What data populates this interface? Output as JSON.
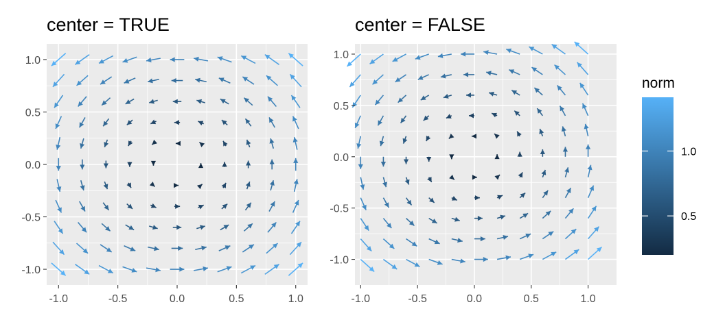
{
  "chart_data": [
    {
      "type": "vector-field",
      "title": "center = TRUE",
      "center": true,
      "field": "u = -y, v = x, arrows centered on grid points",
      "x": [
        -1.0,
        -0.8,
        -0.6,
        -0.4,
        -0.2,
        0.0,
        0.2,
        0.4,
        0.6,
        0.8,
        1.0
      ],
      "y": [
        -1.0,
        -0.8,
        -0.6,
        -0.4,
        -0.2,
        0.0,
        0.2,
        0.4,
        0.6,
        0.8,
        1.0
      ],
      "xlim": [
        -1.1,
        1.1
      ],
      "ylim": [
        -1.15,
        1.15
      ],
      "x_ticks": [
        "-1.0",
        "-0.5",
        "0.0",
        "0.5",
        "1.0"
      ],
      "y_ticks": [
        "1.0",
        "0.5",
        "0.0",
        "-0.5",
        "-1.0"
      ],
      "x_tick_values": [
        -1.0,
        -0.5,
        0.0,
        0.5,
        1.0
      ],
      "y_tick_values": [
        1.0,
        0.5,
        0.0,
        -0.5,
        -1.0
      ],
      "panel_background": "#ebebeb",
      "grid": true
    },
    {
      "type": "vector-field",
      "title": "center = FALSE",
      "center": false,
      "field": "u = -y, v = x, arrows starting at grid points",
      "x": [
        -1.0,
        -0.8,
        -0.6,
        -0.4,
        -0.2,
        0.0,
        0.2,
        0.4,
        0.6,
        0.8,
        1.0
      ],
      "y": [
        -1.0,
        -0.8,
        -0.6,
        -0.4,
        -0.2,
        0.0,
        0.2,
        0.4,
        0.6,
        0.8,
        1.0
      ],
      "xlim": [
        -1.05,
        1.25
      ],
      "ylim": [
        -1.25,
        1.1
      ],
      "x_ticks": [
        "-1.0",
        "-0.5",
        "0.0",
        "0.5",
        "1.0"
      ],
      "y_ticks": [
        "1.0",
        "0.5",
        "0.0",
        "-0.5",
        "-1.0"
      ],
      "x_tick_values": [
        -1.0,
        -0.5,
        0.0,
        0.5,
        1.0
      ],
      "y_tick_values": [
        1.0,
        0.5,
        0.0,
        -0.5,
        -1.0
      ],
      "panel_background": "#ebebeb",
      "grid": true
    }
  ],
  "legend": {
    "title": "norm",
    "placement": "right",
    "range": [
      0.2,
      1.414
    ],
    "breaks": [
      "1.0",
      "0.5"
    ],
    "break_values": [
      1.0,
      0.5
    ],
    "color_low": "#132b43",
    "color_high": "#56b1f7"
  }
}
